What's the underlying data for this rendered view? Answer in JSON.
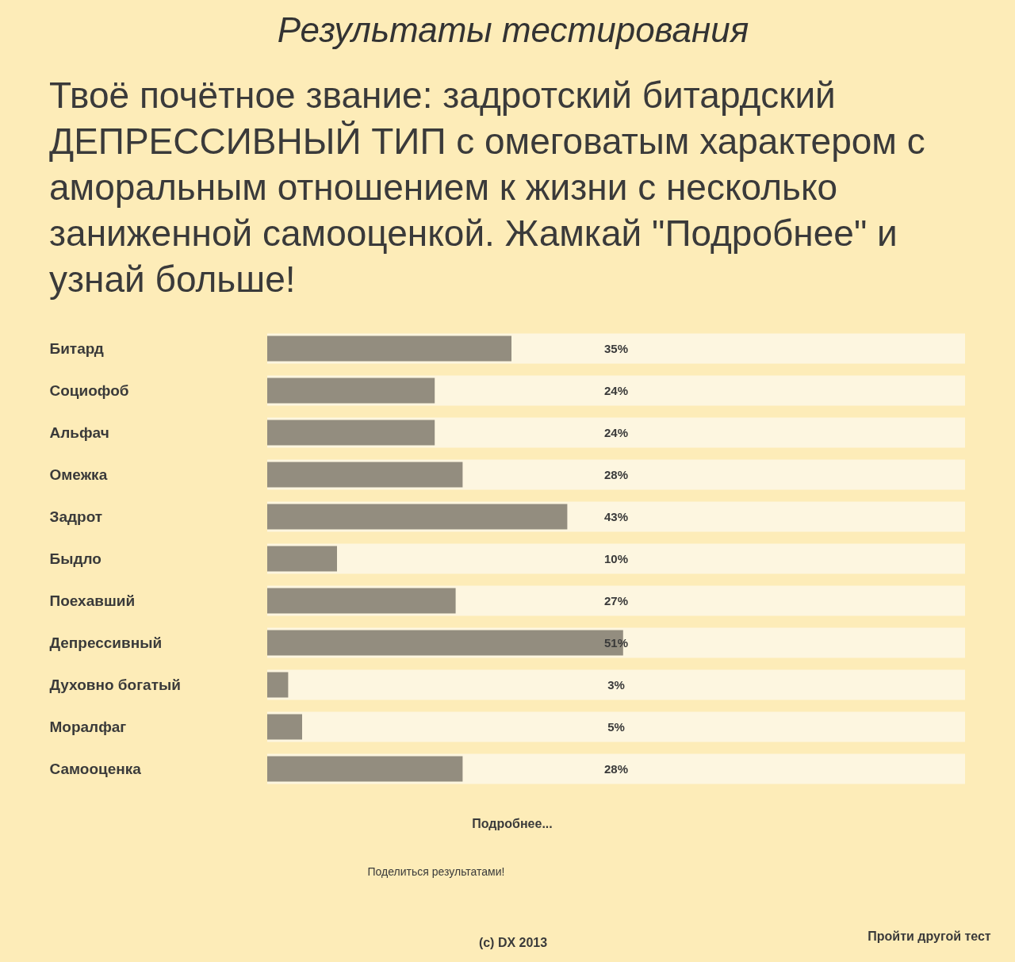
{
  "chart_data": {
    "type": "bar",
    "orientation": "horizontal",
    "title": "Результаты тестирования",
    "subtitle": "Твоё почётное звание: задротский битардский ДЕПРЕССИВНЫЙ ТИП с омеговатым характером с аморальным отношением к жизни с несколько заниженной самооценкой. Жамкай \"Подробнее\" и узнай больше!",
    "categories": [
      "Битард",
      "Социофоб",
      "Альфач",
      "Омежка",
      "Задрот",
      "Быдло",
      "Поехавший",
      "Депрессивный",
      "Духовно богатый",
      "Моралфаг",
      "Самооценка"
    ],
    "values": [
      35,
      24,
      24,
      28,
      43,
      10,
      27,
      51,
      3,
      5,
      28
    ],
    "value_labels": [
      "35%",
      "24%",
      "24%",
      "28%",
      "43%",
      "10%",
      "27%",
      "51%",
      "3%",
      "5%",
      "28%"
    ],
    "color": "#938d7f",
    "xlim": [
      0,
      100
    ],
    "tick_labels": "y",
    "annotations": [
      "Подробнее...",
      "Поделиться результатами!",
      "Пройти другой тест",
      "(c) DX 2013"
    ]
  }
}
